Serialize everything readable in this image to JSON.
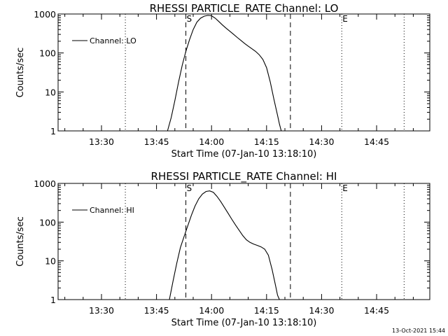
{
  "chart_data": [
    {
      "type": "line",
      "title": "RHESSI PARTICLE_RATE Channel: LO",
      "xlabel": "Start Time (07-Jan-10 13:18:10)",
      "ylabel": "Counts/sec",
      "yscale": "log",
      "ylim": [
        1,
        1000
      ],
      "xlim": [
        "13:18:10",
        "14:59:30"
      ],
      "x_ticks": [
        "13:30",
        "13:45",
        "14:00",
        "14:15",
        "14:30",
        "14:45"
      ],
      "y_ticks": [
        "1",
        "10",
        "100",
        "1000"
      ],
      "grid": false,
      "legend": "top-left",
      "series": [
        {
          "name": "Channel: LO",
          "x": [
            "13:48:00",
            "13:49:00",
            "13:50:00",
            "13:51:00",
            "13:52:00",
            "13:53:00",
            "13:54:00",
            "13:55:00",
            "13:56:00",
            "13:57:00",
            "13:58:00",
            "13:59:00",
            "14:00:00",
            "14:01:00",
            "14:02:00",
            "14:03:00",
            "14:04:00",
            "14:05:00",
            "14:06:00",
            "14:07:00",
            "14:08:00",
            "14:09:00",
            "14:10:00",
            "14:11:00",
            "14:12:00",
            "14:13:00",
            "14:14:00",
            "14:15:00",
            "14:16:00",
            "14:17:00",
            "14:18:00",
            "14:18:30",
            "14:19:00"
          ],
          "values": [
            1.0,
            2.2,
            6.0,
            18,
            48,
            110,
            220,
            400,
            620,
            780,
            880,
            920,
            900,
            780,
            640,
            520,
            430,
            360,
            300,
            250,
            210,
            175,
            150,
            128,
            110,
            90,
            68,
            42,
            18,
            6.5,
            2.5,
            1.5,
            1.0
          ]
        }
      ],
      "annotations": {
        "dotted_lines": [
          "13:36:30",
          "14:35:30",
          "14:52:30"
        ],
        "dashed_lines": [
          "13:53:00",
          "14:21:30"
        ],
        "labels": [
          {
            "text": "S",
            "at": "13:53:00"
          },
          {
            "text": "E",
            "at": "14:35:30"
          }
        ]
      }
    },
    {
      "type": "line",
      "title": "RHESSI PARTICLE_RATE Channel: HI",
      "xlabel": "Start Time (07-Jan-10 13:18:10)",
      "ylabel": "Counts/sec",
      "yscale": "log",
      "ylim": [
        1,
        1000
      ],
      "xlim": [
        "13:18:10",
        "14:59:30"
      ],
      "x_ticks": [
        "13:30",
        "13:45",
        "14:00",
        "14:15",
        "14:30",
        "14:45"
      ],
      "y_ticks": [
        "1",
        "10",
        "100",
        "1000"
      ],
      "grid": false,
      "legend": "top-left",
      "series": [
        {
          "name": "Channel: HI",
          "x": [
            "13:48:30",
            "13:49:30",
            "13:50:30",
            "13:51:30",
            "13:52:30",
            "13:53:30",
            "13:54:30",
            "13:55:30",
            "13:56:30",
            "13:57:30",
            "13:58:30",
            "13:59:30",
            "14:00:30",
            "14:01:30",
            "14:02:30",
            "14:03:30",
            "14:04:30",
            "14:05:30",
            "14:06:30",
            "14:07:30",
            "14:08:30",
            "14:09:30",
            "14:10:30",
            "14:11:30",
            "14:12:30",
            "14:13:30",
            "14:14:30",
            "14:15:30",
            "14:16:30",
            "14:17:30",
            "14:18:00",
            "14:18:30"
          ],
          "values": [
            1.0,
            3.0,
            8.5,
            22,
            42,
            80,
            150,
            260,
            400,
            530,
            620,
            640,
            590,
            460,
            340,
            240,
            170,
            120,
            85,
            62,
            45,
            35,
            30,
            27,
            25,
            23,
            20,
            14,
            6,
            2.2,
            1.3,
            1.0
          ]
        }
      ],
      "annotations": {
        "dotted_lines": [
          "13:36:30",
          "14:35:30",
          "14:52:30"
        ],
        "dashed_lines": [
          "13:53:00",
          "14:21:30"
        ],
        "labels": [
          {
            "text": "S",
            "at": "13:53:00"
          },
          {
            "text": "E",
            "at": "14:35:30"
          }
        ]
      }
    }
  ],
  "footer": {
    "timestamp": "13-Oct-2021 15:44"
  }
}
